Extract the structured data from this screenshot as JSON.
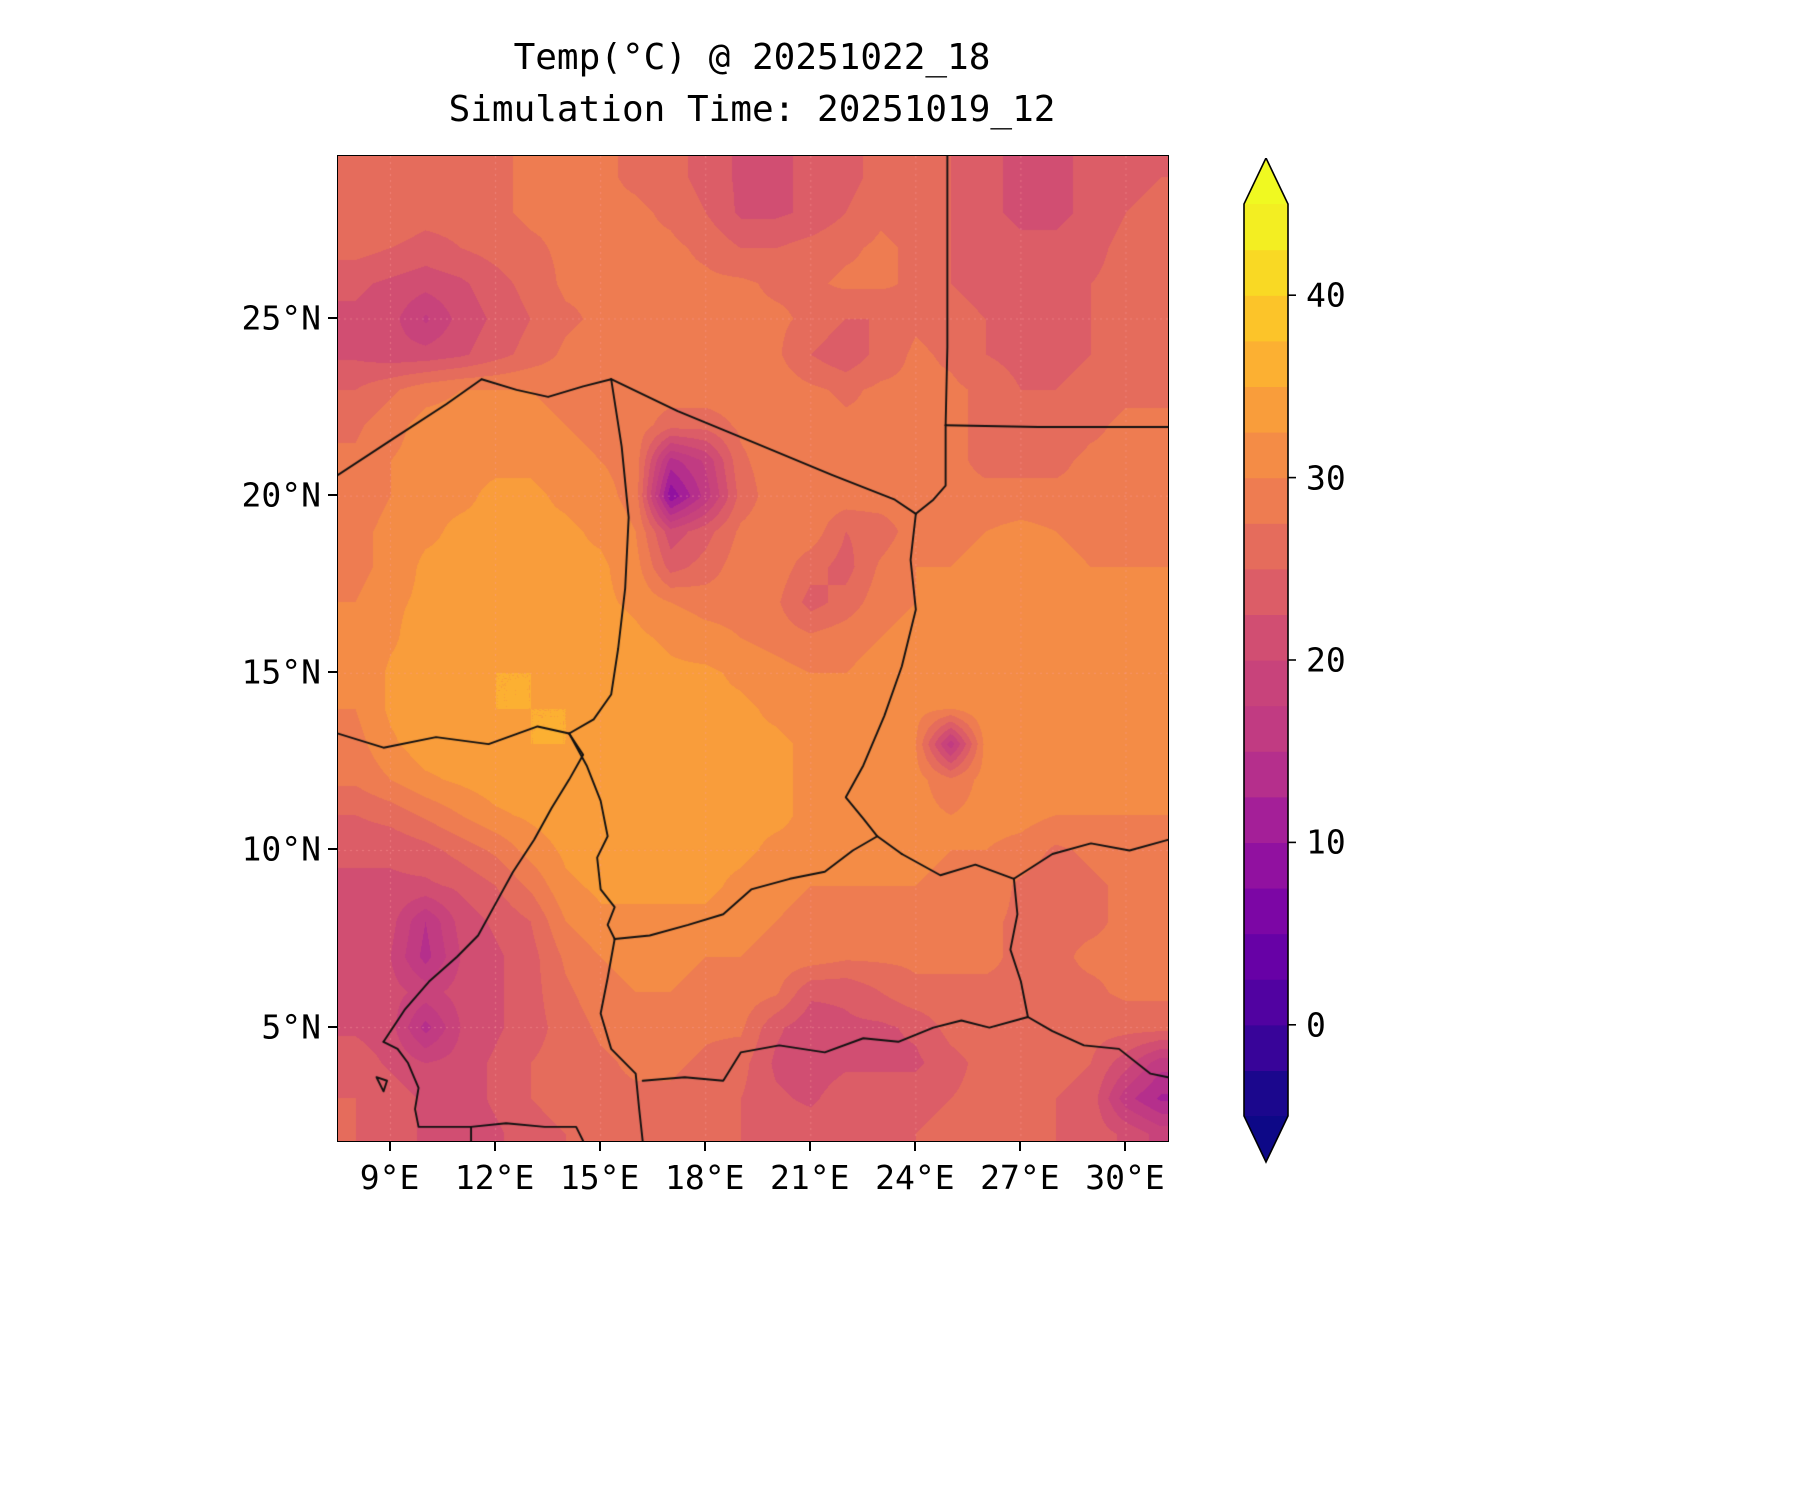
{
  "title": {
    "line1": "Temp(°C) @ 20251022_18",
    "line2": "Simulation Time: 20251019_12"
  },
  "axes": {
    "xlim": [
      7.5,
      31.2
    ],
    "ylim": [
      1.8,
      29.6
    ],
    "x_ticks": [
      {
        "value": 9,
        "label": "9°E"
      },
      {
        "value": 12,
        "label": "12°E"
      },
      {
        "value": 15,
        "label": "15°E"
      },
      {
        "value": 18,
        "label": "18°E"
      },
      {
        "value": 21,
        "label": "21°E"
      },
      {
        "value": 24,
        "label": "24°E"
      },
      {
        "value": 27,
        "label": "27°E"
      },
      {
        "value": 30,
        "label": "30°E"
      }
    ],
    "y_ticks": [
      {
        "value": 5,
        "label": "5°N"
      },
      {
        "value": 10,
        "label": "10°N"
      },
      {
        "value": 15,
        "label": "15°N"
      },
      {
        "value": 20,
        "label": "20°N"
      },
      {
        "value": 25,
        "label": "25°N"
      }
    ]
  },
  "colorbar": {
    "vmin": -5,
    "vmax": 45,
    "step": 2.5,
    "tick_labels": [
      {
        "value": 0,
        "label": "0"
      },
      {
        "value": 10,
        "label": "10"
      },
      {
        "value": 20,
        "label": "20"
      },
      {
        "value": 30,
        "label": "30"
      },
      {
        "value": 40,
        "label": "40"
      }
    ],
    "under_color": "#0d0887",
    "over_color": "#f0f921",
    "band_colors": [
      "#1b078d",
      "#380499",
      "#5102a1",
      "#6701a6",
      "#7c06a5",
      "#9111a0",
      "#a41f98",
      "#b52f8c",
      "#c13b82",
      "#c8437b",
      "#d14e72",
      "#dc5d67",
      "#e56c5c",
      "#ee7c51",
      "#f48c46",
      "#f99d3b",
      "#fcb032",
      "#fcc429",
      "#f9d924",
      "#f3ee22"
    ]
  },
  "chart_data": {
    "type": "heatmap",
    "units": "°C",
    "lon_start": 8,
    "lon_step": 1,
    "lat_start": 29,
    "lat_step": -1,
    "values": [
      [
        27,
        27,
        27,
        27,
        27,
        28,
        28,
        28,
        27,
        26,
        24,
        22,
        22,
        23,
        24,
        26,
        26,
        25,
        23,
        22,
        22,
        23,
        24,
        25
      ],
      [
        27,
        27,
        26,
        26,
        27,
        28,
        28,
        28,
        28,
        27,
        25,
        22,
        22,
        23,
        25,
        27,
        26,
        25,
        23,
        22,
        22,
        23,
        25,
        26
      ],
      [
        26,
        25,
        24,
        25,
        26,
        27,
        28,
        28,
        28,
        28,
        27,
        25,
        25,
        26,
        27,
        28,
        27,
        25,
        24,
        23,
        23,
        24,
        26,
        26
      ],
      [
        23,
        22,
        21,
        22,
        24,
        26,
        28,
        28,
        28,
        28,
        28,
        28,
        27,
        27,
        28,
        28,
        27,
        25,
        24,
        23,
        24,
        25,
        26,
        27
      ],
      [
        22,
        21,
        17,
        21,
        23,
        25,
        27,
        28,
        28,
        28,
        28,
        28,
        28,
        27,
        25,
        25,
        27,
        26,
        25,
        24,
        24,
        25,
        26,
        27
      ],
      [
        22,
        21,
        21,
        22,
        24,
        26,
        28,
        29,
        29,
        29,
        29,
        29,
        28,
        25,
        23,
        26,
        28,
        27,
        25,
        24,
        24,
        25,
        27,
        27
      ],
      [
        25,
        27,
        29,
        30,
        30,
        30,
        29,
        29,
        29,
        29,
        29,
        29,
        29,
        28,
        27,
        28,
        28,
        28,
        27,
        25,
        25,
        26,
        27,
        27
      ],
      [
        27,
        29,
        31,
        31,
        31,
        31,
        30,
        29,
        29,
        26,
        26,
        28,
        29,
        29,
        28,
        28,
        28,
        28,
        27,
        26,
        26,
        27,
        28,
        28
      ],
      [
        28,
        30,
        31,
        32,
        32,
        32,
        31,
        30,
        29,
        14,
        18,
        27,
        29,
        29,
        29,
        29,
        28,
        28,
        27,
        27,
        27,
        28,
        28,
        28
      ],
      [
        28,
        30,
        32,
        32,
        33,
        33,
        32,
        31,
        29,
        8,
        16,
        26,
        29,
        29,
        29,
        29,
        29,
        28,
        28,
        28,
        28,
        28,
        29,
        29
      ],
      [
        29,
        31,
        32,
        33,
        33,
        33,
        33,
        32,
        30,
        21,
        24,
        28,
        29,
        29,
        25,
        26,
        29,
        29,
        30,
        31,
        30,
        29,
        29,
        29
      ],
      [
        29,
        31,
        33,
        33,
        34,
        34,
        33,
        33,
        31,
        24,
        26,
        29,
        29,
        26,
        24,
        28,
        30,
        30,
        31,
        31,
        31,
        30,
        30,
        30
      ],
      [
        30,
        32,
        33,
        34,
        34,
        34,
        34,
        33,
        32,
        30,
        29,
        29,
        28,
        24,
        26,
        29,
        30,
        31,
        31,
        32,
        31,
        31,
        30,
        30
      ],
      [
        30,
        32,
        34,
        34,
        34,
        34,
        34,
        34,
        33,
        32,
        31,
        30,
        29,
        28,
        29,
        30,
        31,
        31,
        32,
        32,
        32,
        31,
        31,
        31
      ],
      [
        30,
        33,
        34,
        34,
        35,
        35,
        34,
        34,
        34,
        33,
        33,
        32,
        31,
        30,
        30,
        31,
        31,
        32,
        32,
        32,
        32,
        31,
        31,
        31
      ],
      [
        30,
        33,
        34,
        34,
        35,
        35,
        35,
        34,
        34,
        34,
        33,
        33,
        32,
        31,
        31,
        31,
        31,
        30,
        32,
        32,
        31,
        31,
        31,
        31
      ],
      [
        29,
        32,
        34,
        34,
        34,
        35,
        35,
        34,
        34,
        34,
        34,
        33,
        33,
        32,
        31,
        31,
        30,
        16,
        31,
        32,
        31,
        31,
        30,
        30
      ],
      [
        28,
        30,
        32,
        33,
        34,
        34,
        34,
        34,
        34,
        34,
        34,
        33,
        33,
        32,
        31,
        31,
        31,
        28,
        31,
        31,
        31,
        31,
        30,
        30
      ],
      [
        25,
        26,
        28,
        30,
        32,
        33,
        34,
        34,
        34,
        34,
        34,
        33,
        33,
        32,
        31,
        31,
        31,
        30,
        31,
        31,
        30,
        30,
        30,
        30
      ],
      [
        23,
        23,
        24,
        26,
        28,
        31,
        33,
        34,
        34,
        34,
        33,
        33,
        32,
        32,
        31,
        31,
        31,
        30,
        30,
        29,
        27,
        28,
        29,
        29
      ],
      [
        22,
        22,
        22,
        23,
        25,
        28,
        32,
        33,
        33,
        33,
        33,
        32,
        31,
        30,
        30,
        30,
        30,
        29,
        29,
        27,
        26,
        27,
        28,
        29
      ],
      [
        21,
        21,
        15,
        21,
        23,
        25,
        30,
        32,
        32,
        32,
        32,
        31,
        30,
        29,
        29,
        29,
        29,
        29,
        28,
        27,
        27,
        27,
        28,
        28
      ],
      [
        21,
        20,
        14,
        20,
        22,
        24,
        28,
        30,
        31,
        31,
        30,
        30,
        29,
        29,
        28,
        28,
        28,
        28,
        28,
        27,
        27,
        28,
        28,
        28
      ],
      [
        21,
        21,
        19,
        21,
        22,
        24,
        27,
        29,
        30,
        30,
        29,
        29,
        28,
        23,
        23,
        25,
        27,
        27,
        27,
        27,
        27,
        27,
        28,
        28
      ],
      [
        22,
        21,
        14,
        20,
        22,
        24,
        26,
        28,
        29,
        29,
        28,
        28,
        23,
        21,
        22,
        22,
        23,
        26,
        27,
        27,
        26,
        26,
        26,
        26
      ],
      [
        24,
        22,
        20,
        21,
        23,
        25,
        26,
        27,
        28,
        28,
        27,
        26,
        22,
        21,
        22,
        22,
        22,
        24,
        26,
        26,
        26,
        25,
        21,
        16
      ],
      [
        25,
        24,
        22,
        21,
        23,
        25,
        26,
        27,
        27,
        27,
        26,
        25,
        23,
        22,
        24,
        24,
        24,
        25,
        26,
        26,
        25,
        24,
        16,
        12
      ],
      [
        25,
        24,
        22,
        21,
        22,
        24,
        25,
        26,
        27,
        27,
        26,
        25,
        24,
        24,
        25,
        25,
        25,
        26,
        26,
        26,
        25,
        24,
        22,
        19
      ]
    ],
    "borders": [
      [
        [
          7.5,
          20.6
        ],
        [
          9.2,
          21.7
        ],
        [
          10.6,
          22.6
        ],
        [
          11.6,
          23.3
        ]
      ],
      [
        [
          11.6,
          23.3
        ],
        [
          12.6,
          23.0
        ],
        [
          13.5,
          22.8
        ],
        [
          14.5,
          23.1
        ],
        [
          15.3,
          23.3
        ]
      ],
      [
        [
          15.3,
          23.3
        ],
        [
          17.2,
          22.4
        ],
        [
          19.4,
          21.5
        ],
        [
          21.6,
          20.6
        ],
        [
          23.4,
          19.9
        ],
        [
          24.0,
          19.5
        ]
      ],
      [
        [
          24.9,
          29.6
        ],
        [
          24.9,
          26.5
        ],
        [
          24.9,
          24.2
        ],
        [
          24.85,
          22.0
        ]
      ],
      [
        [
          24.85,
          22.0
        ],
        [
          27.5,
          21.95
        ],
        [
          31.2,
          21.95
        ]
      ],
      [
        [
          24.0,
          19.5
        ],
        [
          24.5,
          19.9
        ],
        [
          24.85,
          20.3
        ],
        [
          24.85,
          22.0
        ]
      ],
      [
        [
          24.0,
          19.5
        ],
        [
          23.85,
          18.2
        ],
        [
          24.0,
          16.8
        ],
        [
          23.6,
          15.2
        ],
        [
          23.1,
          13.8
        ],
        [
          22.5,
          12.4
        ],
        [
          22.0,
          11.5
        ],
        [
          22.5,
          10.9
        ],
        [
          22.9,
          10.4
        ],
        [
          23.6,
          9.9
        ]
      ],
      [
        [
          23.6,
          9.9
        ],
        [
          24.7,
          9.3
        ],
        [
          25.7,
          9.6
        ],
        [
          26.8,
          9.2
        ],
        [
          27.9,
          9.9
        ],
        [
          29.0,
          10.2
        ],
        [
          30.1,
          10.0
        ],
        [
          31.2,
          10.3
        ]
      ],
      [
        [
          15.4,
          7.5
        ],
        [
          16.4,
          7.6
        ],
        [
          17.5,
          7.9
        ],
        [
          18.5,
          8.2
        ],
        [
          19.3,
          8.9
        ],
        [
          20.4,
          9.2
        ],
        [
          21.4,
          9.4
        ],
        [
          22.2,
          10.0
        ],
        [
          22.9,
          10.4
        ]
      ],
      [
        [
          15.3,
          23.3
        ],
        [
          15.6,
          21.4
        ],
        [
          15.8,
          19.4
        ],
        [
          15.7,
          17.4
        ],
        [
          15.5,
          15.7
        ],
        [
          15.3,
          14.4
        ],
        [
          14.8,
          13.7
        ],
        [
          14.1,
          13.3
        ]
      ],
      [
        [
          7.5,
          13.3
        ],
        [
          8.8,
          12.9
        ],
        [
          10.3,
          13.2
        ],
        [
          11.8,
          13.0
        ],
        [
          13.2,
          13.5
        ],
        [
          14.1,
          13.3
        ]
      ],
      [
        [
          8.8,
          4.6
        ],
        [
          9.4,
          5.5
        ],
        [
          10.1,
          6.3
        ],
        [
          10.9,
          7.0
        ],
        [
          11.5,
          7.6
        ],
        [
          12.0,
          8.5
        ],
        [
          12.5,
          9.4
        ],
        [
          13.1,
          10.3
        ],
        [
          13.6,
          11.2
        ],
        [
          14.1,
          12.0
        ],
        [
          14.5,
          12.7
        ],
        [
          14.1,
          13.3
        ]
      ],
      [
        [
          14.1,
          13.3
        ],
        [
          14.6,
          12.4
        ],
        [
          15.0,
          11.4
        ],
        [
          15.2,
          10.4
        ],
        [
          14.9,
          9.8
        ],
        [
          15.0,
          8.9
        ],
        [
          15.4,
          8.4
        ],
        [
          15.2,
          7.9
        ],
        [
          15.4,
          7.5
        ]
      ],
      [
        [
          15.4,
          7.5
        ],
        [
          15.2,
          6.4
        ],
        [
          15.0,
          5.4
        ],
        [
          15.3,
          4.4
        ],
        [
          16.0,
          3.7
        ],
        [
          16.1,
          2.7
        ],
        [
          16.2,
          1.8
        ]
      ],
      [
        [
          16.2,
          3.5
        ],
        [
          17.4,
          3.6
        ],
        [
          18.5,
          3.5
        ],
        [
          19.0,
          4.3
        ],
        [
          20.1,
          4.5
        ],
        [
          21.4,
          4.3
        ],
        [
          22.5,
          4.7
        ],
        [
          23.5,
          4.6
        ],
        [
          24.5,
          5.0
        ],
        [
          25.3,
          5.2
        ],
        [
          26.1,
          5.0
        ],
        [
          27.2,
          5.3
        ],
        [
          27.9,
          4.9
        ],
        [
          28.8,
          4.5
        ],
        [
          29.8,
          4.4
        ],
        [
          30.7,
          3.7
        ],
        [
          31.2,
          3.6
        ]
      ],
      [
        [
          8.8,
          4.6
        ],
        [
          9.2,
          4.4
        ],
        [
          9.5,
          4.0
        ],
        [
          9.8,
          3.3
        ],
        [
          9.7,
          2.7
        ],
        [
          9.8,
          2.2
        ],
        [
          11.3,
          2.2
        ],
        [
          11.3,
          1.8
        ]
      ],
      [
        [
          11.3,
          2.2
        ],
        [
          12.3,
          2.3
        ],
        [
          13.4,
          2.2
        ],
        [
          14.3,
          2.2
        ],
        [
          14.5,
          1.8
        ]
      ],
      [
        [
          27.2,
          5.3
        ],
        [
          27.0,
          6.3
        ],
        [
          26.7,
          7.2
        ],
        [
          26.9,
          8.2
        ],
        [
          26.8,
          9.2
        ]
      ],
      [
        [
          8.6,
          3.6
        ],
        [
          8.9,
          3.5
        ],
        [
          8.8,
          3.2
        ],
        [
          8.6,
          3.6
        ]
      ]
    ]
  }
}
